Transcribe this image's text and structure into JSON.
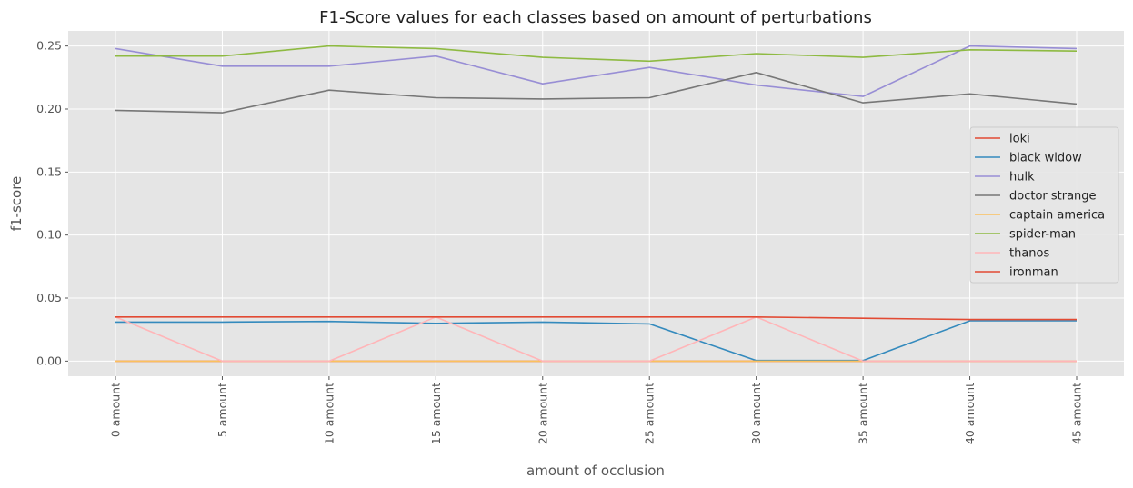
{
  "chart_data": {
    "type": "line",
    "title": "F1-Score values for each classes based on amount of perturbations",
    "xlabel": "amount of occlusion",
    "ylabel": "f1-score",
    "categories": [
      "0 amount",
      "5 amount",
      "10 amount",
      "15 amount",
      "20 amount",
      "25 amount",
      "30 amount",
      "35 amount",
      "40 amount",
      "45 amount"
    ],
    "ylim": [
      -0.012,
      0.262
    ],
    "yticks": [
      "0.00",
      "0.05",
      "0.10",
      "0.15",
      "0.20",
      "0.25"
    ],
    "grid": true,
    "legend_position": "center-right",
    "series": [
      {
        "name": "loki",
        "color": "#E24A33",
        "values": [
          0.0,
          0.0,
          0.0,
          0.0,
          0.0,
          0.0,
          0.0,
          0.0,
          0.0,
          0.0
        ]
      },
      {
        "name": "black widow",
        "color": "#348ABD",
        "values": [
          0.031,
          0.031,
          0.0315,
          0.03,
          0.031,
          0.0295,
          0.0005,
          0.0005,
          0.032,
          0.032
        ]
      },
      {
        "name": "hulk",
        "color": "#988ED5",
        "values": [
          0.248,
          0.234,
          0.234,
          0.242,
          0.22,
          0.233,
          0.219,
          0.21,
          0.25,
          0.248
        ]
      },
      {
        "name": "doctor strange",
        "color": "#777777",
        "values": [
          0.199,
          0.197,
          0.215,
          0.209,
          0.208,
          0.209,
          0.229,
          0.205,
          0.212,
          0.204
        ]
      },
      {
        "name": "captain america",
        "color": "#FBC15E",
        "values": [
          0.0,
          0.0,
          0.0,
          0.0,
          0.0,
          0.0,
          0.0,
          0.0,
          0.0,
          0.0
        ]
      },
      {
        "name": "spider-man",
        "color": "#8EBA42",
        "values": [
          0.242,
          0.242,
          0.25,
          0.248,
          0.241,
          0.238,
          0.244,
          0.241,
          0.247,
          0.246
        ]
      },
      {
        "name": "thanos",
        "color": "#FFB5B8",
        "values": [
          0.035,
          0.0,
          0.0,
          0.035,
          0.0,
          0.0,
          0.035,
          0.0,
          0.0,
          0.0
        ]
      },
      {
        "name": "ironman",
        "color": "#E24A33",
        "values": [
          0.035,
          0.035,
          0.035,
          0.035,
          0.035,
          0.035,
          0.035,
          0.034,
          0.033,
          0.033
        ]
      }
    ]
  }
}
